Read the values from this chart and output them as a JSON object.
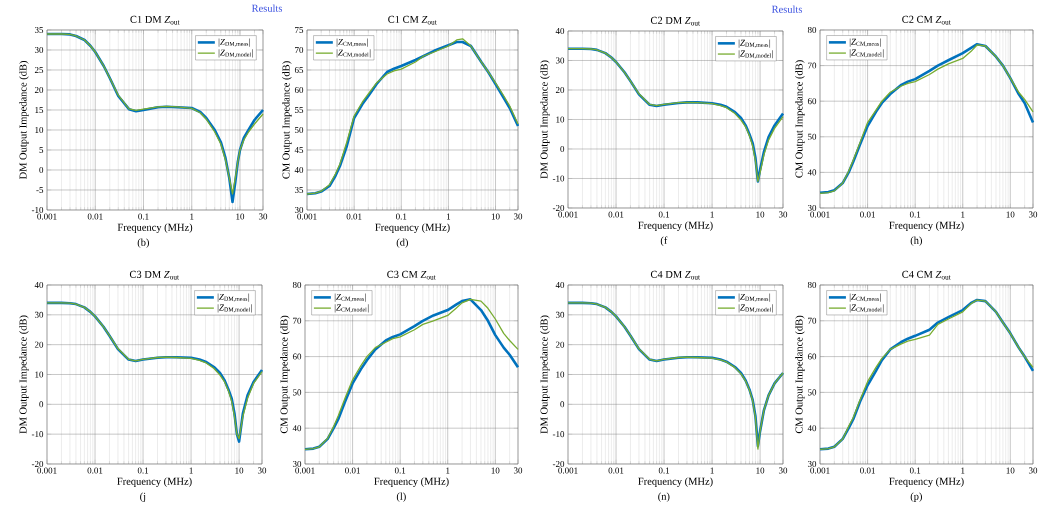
{
  "chart_data": [
    {
      "type": "line",
      "title": "C1 DM *Z*$_{out}$",
      "xlabel": "Frequency (MHz)",
      "ylabel": "DM Output Impedance (dB)",
      "log": "x",
      "grid": true,
      "legend": "top right",
      "x": [
        0.001,
        0.002,
        0.003,
        0.004,
        0.006,
        0.008,
        0.01,
        0.015,
        0.02,
        0.03,
        0.05,
        0.07,
        0.1,
        0.2,
        0.3,
        0.5,
        1,
        1.5,
        2,
        3,
        4,
        5,
        6,
        7,
        8,
        9,
        10,
        12,
        15,
        20,
        30
      ],
      "xlim": [
        0.001,
        30
      ],
      "xticks": [
        0.001,
        0.01,
        0.1,
        1,
        10,
        30
      ],
      "ylim": [
        -10,
        35
      ],
      "yticks": [
        -10,
        -5,
        0,
        5,
        10,
        15,
        20,
        25,
        30,
        35
      ],
      "series": [
        {
          "name": "|*Z*$_{DM,meas}$|",
          "color": "#0072bd",
          "values": [
            34,
            34,
            33.9,
            33.5,
            32.5,
            31,
            29.5,
            26,
            23,
            18.5,
            15.2,
            14.7,
            15,
            15.7,
            15.8,
            15.7,
            15.5,
            14.5,
            13,
            10,
            7,
            3,
            -2,
            -8,
            -3,
            2,
            5,
            8,
            10,
            12.5,
            15
          ]
        },
        {
          "name": "|*Z*$_{DM,model}$|",
          "color": "#77ac30",
          "values": [
            34,
            34,
            33.9,
            33.5,
            32.5,
            31,
            29.5,
            26,
            23,
            18.7,
            15.3,
            14.9,
            15.2,
            15.8,
            15.9,
            15.8,
            15.4,
            14.3,
            12.7,
            9.5,
            6.5,
            2.5,
            -2,
            -6,
            -2,
            2,
            5,
            7.5,
            9.5,
            11.5,
            14
          ]
        }
      ],
      "annotations": [
        "(b)",
        "Results"
      ]
    },
    {
      "type": "line",
      "title": "C1 CM *Z*$_{out}$",
      "xlabel": "Frequency (MHz)",
      "ylabel": "CM Output Impedance (dB)",
      "log": "x",
      "grid": true,
      "legend": "top left",
      "x": [
        0.001,
        0.0015,
        0.002,
        0.003,
        0.004,
        0.005,
        0.007,
        0.01,
        0.015,
        0.02,
        0.03,
        0.05,
        0.07,
        0.1,
        0.2,
        0.3,
        0.5,
        1,
        1.5,
        2,
        3,
        5,
        7,
        10,
        15,
        20,
        30
      ],
      "xlim": [
        0.001,
        30
      ],
      "xticks": [
        0.001,
        0.01,
        0.1,
        1,
        10,
        30
      ],
      "ylim": [
        30,
        75
      ],
      "yticks": [
        30,
        35,
        40,
        45,
        50,
        55,
        60,
        65,
        70,
        75
      ],
      "series": [
        {
          "name": "|*Z*$_{CM,meas}$|",
          "color": "#0072bd",
          "values": [
            34,
            34.2,
            34.6,
            36,
            38.5,
            41,
            46,
            53,
            56.5,
            58.5,
            61.5,
            64.5,
            65.3,
            66,
            67.5,
            68.5,
            69.8,
            71.2,
            72,
            72,
            71,
            67,
            64.5,
            61.5,
            58,
            55.5,
            51
          ]
        },
        {
          "name": "|*Z*$_{CM,model}$|",
          "color": "#77ac30",
          "values": [
            34,
            34.2,
            34.7,
            36.3,
            39,
            41.5,
            47,
            53.5,
            57,
            59,
            61.8,
            64,
            64.8,
            65.2,
            67,
            68.5,
            69.5,
            71,
            72.5,
            72.8,
            71,
            67,
            64.5,
            61.8,
            58.5,
            56,
            51.5
          ]
        }
      ],
      "annotations": [
        "(d)"
      ]
    },
    {
      "type": "line",
      "title": "C2 DM *Z*$_{out}$",
      "xlabel": "Frequency (MHz)",
      "ylabel": "DM Output Impedance (dB)",
      "log": "x",
      "grid": true,
      "legend": "top right",
      "x": [
        0.001,
        0.002,
        0.003,
        0.004,
        0.006,
        0.008,
        0.01,
        0.015,
        0.02,
        0.03,
        0.05,
        0.07,
        0.1,
        0.2,
        0.3,
        0.5,
        1,
        1.5,
        2,
        3,
        4,
        5,
        6,
        7,
        8,
        9,
        10,
        12,
        15,
        20,
        30
      ],
      "xlim": [
        0.001,
        30
      ],
      "xticks": [
        0.001,
        0.01,
        0.1,
        1,
        10,
        30
      ],
      "ylim": [
        -20,
        40
      ],
      "yticks": [
        -20,
        -10,
        0,
        10,
        20,
        30,
        40
      ],
      "series": [
        {
          "name": "|*Z*$_{DM,meas}$|",
          "color": "#0072bd",
          "values": [
            34,
            34,
            33.9,
            33.6,
            32.5,
            31,
            29.5,
            26,
            23,
            18.5,
            15,
            14.6,
            15,
            15.6,
            15.8,
            15.8,
            15.5,
            15,
            14.3,
            12.5,
            10.5,
            8,
            5,
            2,
            -3,
            -11,
            -7,
            -1,
            4,
            8,
            12
          ]
        },
        {
          "name": "|*Z*$_{DM,model}$|",
          "color": "#77ac30",
          "values": [
            34,
            34,
            33.9,
            33.6,
            32.5,
            31,
            29.5,
            26,
            23,
            18.7,
            15.1,
            14.7,
            15.1,
            15.7,
            15.8,
            15.7,
            15.4,
            14.7,
            14,
            12,
            9.8,
            7.5,
            4.5,
            1,
            -4,
            -11,
            -8,
            -2,
            3,
            7,
            11
          ]
        }
      ],
      "annotations": [
        "(f",
        "Results"
      ]
    },
    {
      "type": "line",
      "title": "C2 CM *Z*$_{out}$",
      "xlabel": "Frequency (MHz)",
      "ylabel": "CM Output Impedance (dB)",
      "log": "x",
      "grid": true,
      "legend": "top left",
      "x": [
        0.001,
        0.0015,
        0.002,
        0.003,
        0.004,
        0.005,
        0.007,
        0.01,
        0.015,
        0.02,
        0.03,
        0.05,
        0.07,
        0.1,
        0.2,
        0.3,
        0.5,
        1,
        1.5,
        2,
        3,
        5,
        7,
        10,
        15,
        20,
        30
      ],
      "xlim": [
        0.001,
        30
      ],
      "xticks": [
        0.001,
        0.01,
        0.1,
        1,
        10,
        30
      ],
      "ylim": [
        30,
        80
      ],
      "yticks": [
        30,
        40,
        50,
        60,
        70,
        80
      ],
      "series": [
        {
          "name": "|*Z*$_{CM,meas}$|",
          "color": "#0072bd",
          "values": [
            34.3,
            34.5,
            35,
            37,
            40,
            43,
            48,
            53,
            57,
            59.5,
            62,
            64.5,
            65.5,
            66.2,
            68.5,
            70,
            71.5,
            73.5,
            75,
            76,
            75.5,
            72.5,
            70,
            66.5,
            62,
            59.5,
            54
          ]
        },
        {
          "name": "|*Z*$_{CM,model}$|",
          "color": "#77ac30",
          "values": [
            34.1,
            34.3,
            34.8,
            37,
            40.3,
            43.5,
            48.5,
            54,
            57.5,
            60,
            62.5,
            64.2,
            65,
            65.5,
            67.5,
            69,
            70.5,
            72,
            74,
            75.8,
            75.5,
            72.5,
            70,
            66.5,
            62.5,
            60.5,
            57
          ]
        }
      ],
      "annotations": [
        "(h)"
      ]
    },
    {
      "type": "line",
      "title": "C3 DM *Z*$_{out}$",
      "xlabel": "Frequency (MHz)",
      "ylabel": "DM Output Impedance (dB)",
      "log": "x",
      "grid": true,
      "legend": "top right",
      "x": [
        0.001,
        0.002,
        0.003,
        0.004,
        0.006,
        0.008,
        0.01,
        0.015,
        0.02,
        0.03,
        0.05,
        0.07,
        0.1,
        0.2,
        0.3,
        0.5,
        1,
        1.5,
        2,
        3,
        4,
        5,
        6,
        7,
        8,
        9,
        10,
        12,
        15,
        20,
        30
      ],
      "xlim": [
        0.001,
        30
      ],
      "xticks": [
        0.001,
        0.01,
        0.1,
        1,
        10,
        30
      ],
      "ylim": [
        -20,
        40
      ],
      "yticks": [
        -20,
        -10,
        0,
        10,
        20,
        30,
        40
      ],
      "series": [
        {
          "name": "|*Z*$_{DM,meas}$|",
          "color": "#0072bd",
          "values": [
            34,
            34,
            33.9,
            33.6,
            32.5,
            31,
            29.5,
            26,
            23,
            18.5,
            15,
            14.5,
            15,
            15.6,
            15.8,
            15.8,
            15.6,
            15,
            14.3,
            12.5,
            10.5,
            8,
            5,
            2,
            -3,
            -10,
            -12.5,
            -3,
            3,
            7.5,
            11.5
          ]
        },
        {
          "name": "|*Z*$_{DM,model}$|",
          "color": "#77ac30",
          "values": [
            34,
            34,
            33.9,
            33.6,
            32.5,
            31,
            29.5,
            26,
            23,
            18.7,
            15.1,
            14.6,
            15.1,
            15.7,
            15.8,
            15.7,
            15.4,
            14.7,
            14,
            12,
            9.8,
            7.5,
            4.5,
            1,
            -4,
            -10,
            -11.5,
            -4,
            2,
            7,
            11
          ]
        }
      ],
      "annotations": [
        "(j"
      ]
    },
    {
      "type": "line",
      "title": "C3 CM *Z*$_{out}$",
      "xlabel": "Frequency (MHz)",
      "ylabel": "CM Output Impedance (dB)",
      "log": "x",
      "grid": true,
      "legend": "top left",
      "x": [
        0.001,
        0.0015,
        0.002,
        0.003,
        0.004,
        0.005,
        0.007,
        0.01,
        0.015,
        0.02,
        0.03,
        0.05,
        0.07,
        0.1,
        0.2,
        0.3,
        0.5,
        1,
        1.5,
        2,
        3,
        5,
        7,
        10,
        15,
        20,
        30
      ],
      "xlim": [
        0.001,
        30
      ],
      "xticks": [
        0.001,
        0.01,
        0.1,
        1,
        10,
        30
      ],
      "ylim": [
        30,
        80
      ],
      "yticks": [
        30,
        40,
        50,
        60,
        70,
        80
      ],
      "series": [
        {
          "name": "|*Z*$_{CM,meas}$|",
          "color": "#0072bd",
          "values": [
            34.1,
            34.3,
            34.8,
            37,
            40,
            42.5,
            47.5,
            52.5,
            56.5,
            59,
            62,
            64.5,
            65.5,
            66.2,
            68.5,
            70,
            71.5,
            73,
            74.5,
            75.5,
            76,
            73,
            70,
            66,
            62.5,
            60.5,
            57
          ]
        },
        {
          "name": "|*Z*$_{CM,model}$|",
          "color": "#77ac30",
          "values": [
            34.1,
            34.3,
            34.8,
            37.2,
            40.5,
            43.5,
            48.5,
            53.5,
            57.5,
            60,
            62.5,
            64,
            65,
            65.5,
            67.5,
            69,
            70,
            71.5,
            73.5,
            75,
            76,
            75.5,
            73.5,
            70.5,
            66.5,
            64.5,
            62
          ]
        }
      ],
      "annotations": [
        "(l)"
      ]
    },
    {
      "type": "line",
      "title": "C4 DM *Z*$_{out}$",
      "xlabel": "Frequency (MHz)",
      "ylabel": "DM Output Impedance (dB)",
      "log": "x",
      "grid": true,
      "legend": "top right",
      "x": [
        0.001,
        0.002,
        0.003,
        0.004,
        0.006,
        0.008,
        0.01,
        0.015,
        0.02,
        0.03,
        0.05,
        0.07,
        0.1,
        0.2,
        0.3,
        0.5,
        1,
        1.5,
        2,
        3,
        4,
        5,
        6,
        7,
        8,
        9,
        10,
        12,
        15,
        20,
        30
      ],
      "xlim": [
        0.001,
        30
      ],
      "xticks": [
        0.001,
        0.01,
        0.1,
        1,
        10,
        30
      ],
      "ylim": [
        -20,
        40
      ],
      "yticks": [
        -20,
        -10,
        0,
        10,
        20,
        30,
        40
      ],
      "series": [
        {
          "name": "|*Z*$_{DM,meas}$|",
          "color": "#0072bd",
          "values": [
            34,
            34,
            33.9,
            33.6,
            32.5,
            31,
            29.5,
            26,
            23,
            18.5,
            15,
            14.5,
            15,
            15.6,
            15.8,
            15.8,
            15.6,
            15,
            14.3,
            12.5,
            10.5,
            8,
            5,
            1.5,
            -4,
            -14,
            -9,
            -2,
            3,
            7,
            10.5
          ]
        },
        {
          "name": "|*Z*$_{DM,model}$|",
          "color": "#77ac30",
          "values": [
            34,
            34,
            33.9,
            33.6,
            32.5,
            31,
            29.5,
            26,
            23,
            18.6,
            15.1,
            14.6,
            15.1,
            15.7,
            15.8,
            15.7,
            15.5,
            14.9,
            14.2,
            12.3,
            10.2,
            7.8,
            4.8,
            1.2,
            -4.5,
            -15,
            -9,
            -2,
            3,
            7,
            10.5
          ]
        }
      ],
      "annotations": [
        "(n)"
      ]
    },
    {
      "type": "line",
      "title": "C4 CM *Z*$_{out}$",
      "xlabel": "Frequency (MHz)",
      "ylabel": "CM Output Impedance (dB)",
      "log": "x",
      "grid": true,
      "legend": "top left",
      "x": [
        0.001,
        0.0015,
        0.002,
        0.003,
        0.004,
        0.005,
        0.007,
        0.01,
        0.015,
        0.02,
        0.03,
        0.05,
        0.07,
        0.1,
        0.2,
        0.3,
        0.5,
        1,
        1.5,
        2,
        3,
        5,
        7,
        10,
        15,
        20,
        30
      ],
      "xlim": [
        0.001,
        30
      ],
      "xticks": [
        0.001,
        0.01,
        0.1,
        1,
        10,
        30
      ],
      "ylim": [
        30,
        80
      ],
      "yticks": [
        30,
        40,
        50,
        60,
        70,
        80
      ],
      "series": [
        {
          "name": "|*Z*$_{CM,meas}$|",
          "color": "#0072bd",
          "values": [
            34.1,
            34.3,
            34.8,
            37,
            40,
            42.5,
            47.5,
            52,
            56,
            59,
            62,
            64,
            65,
            65.8,
            67.5,
            69.5,
            71,
            73,
            75,
            75.8,
            75.5,
            72.5,
            69.5,
            66.5,
            62.5,
            60,
            56
          ]
        },
        {
          "name": "|*Z*$_{CM,model}$|",
          "color": "#77ac30",
          "values": [
            34.1,
            34.3,
            34.8,
            37,
            40.5,
            43,
            48,
            53,
            57,
            59.5,
            62,
            63.5,
            64.3,
            64.8,
            66,
            69,
            70.5,
            72.5,
            74.8,
            75.8,
            75.5,
            72.5,
            69.5,
            66.5,
            62.5,
            60,
            57
          ]
        }
      ],
      "annotations": [
        "(p)"
      ]
    }
  ]
}
